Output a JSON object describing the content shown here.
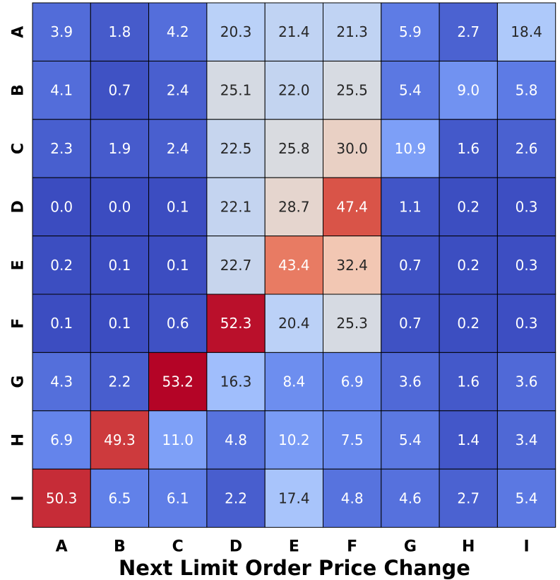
{
  "chart_data": {
    "type": "heatmap",
    "title": "",
    "xlabel": "Next Limit Order Price Change",
    "ylabel": "",
    "x_categories": [
      "A",
      "B",
      "C",
      "D",
      "E",
      "F",
      "G",
      "H",
      "I"
    ],
    "y_categories": [
      "A",
      "B",
      "C",
      "D",
      "E",
      "F",
      "G",
      "H",
      "I"
    ],
    "values": [
      [
        3.9,
        1.8,
        4.2,
        20.3,
        21.4,
        21.3,
        5.9,
        2.7,
        18.4
      ],
      [
        4.1,
        0.7,
        2.4,
        25.1,
        22.0,
        25.5,
        5.4,
        9.0,
        5.8
      ],
      [
        2.3,
        1.9,
        2.4,
        22.5,
        25.8,
        30.0,
        10.9,
        1.6,
        2.6
      ],
      [
        0.0,
        0.0,
        0.1,
        22.1,
        28.7,
        47.4,
        1.1,
        0.2,
        0.3
      ],
      [
        0.2,
        0.1,
        0.1,
        22.7,
        43.4,
        32.4,
        0.7,
        0.2,
        0.3
      ],
      [
        0.1,
        0.1,
        0.6,
        52.3,
        20.4,
        25.3,
        0.7,
        0.2,
        0.3
      ],
      [
        4.3,
        2.2,
        53.2,
        16.3,
        8.4,
        6.9,
        3.6,
        1.6,
        3.6
      ],
      [
        6.9,
        49.3,
        11.0,
        4.8,
        10.2,
        7.5,
        5.4,
        1.4,
        3.4
      ],
      [
        50.3,
        6.5,
        6.1,
        2.2,
        17.4,
        4.8,
        4.6,
        2.7,
        5.4
      ]
    ],
    "value_range": [
      0,
      53.2
    ],
    "colormap": "coolwarm",
    "colorbar": false,
    "grid": false,
    "cell_border_color": "#000000"
  }
}
